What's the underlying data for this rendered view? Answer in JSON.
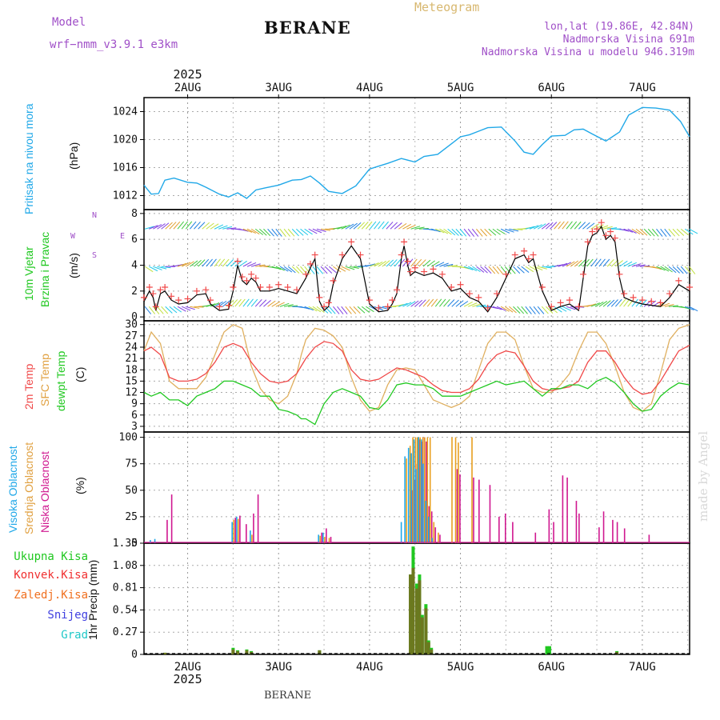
{
  "header": {
    "model_label": "Model",
    "model_name": "wrf−nmm_v3.9.1 e3km",
    "title": "BERANE",
    "meteogram": "Meteogram",
    "lonlat": "lon,lat (19.86E, 42.84N)",
    "elevation": "Nadmorska Visina 691m",
    "model_elevation": "Nadmorska Visina u modelu 946.319m",
    "footer_station": "BERANE",
    "watermark": "made by Angel"
  },
  "chart_data": {
    "type": "meteogram",
    "year": "2025",
    "x_range_days": [
      1.52,
      7.52
    ],
    "day_ticks": [
      {
        "day": 2,
        "label": "2AUG"
      },
      {
        "day": 3,
        "label": "3AUG"
      },
      {
        "day": 4,
        "label": "4AUG"
      },
      {
        "day": 5,
        "label": "5AUG"
      },
      {
        "day": 6,
        "label": "6AUG"
      },
      {
        "day": 7,
        "label": "7AUG"
      }
    ],
    "panels": {
      "pressure": {
        "ylabel": "Pritisak na nivou mora",
        "unit": "(hPa)",
        "ylim": [
          1010,
          1026
        ],
        "yticks": [
          "1012",
          "1016",
          "1020",
          "1024"
        ],
        "color": "#20a8e8",
        "x": [
          1.52,
          1.6,
          1.68,
          1.75,
          1.85,
          2.0,
          2.1,
          2.2,
          2.35,
          2.45,
          2.55,
          2.65,
          2.75,
          2.85,
          3.0,
          3.15,
          3.25,
          3.35,
          3.45,
          3.55,
          3.7,
          3.85,
          4.0,
          4.1,
          4.2,
          4.35,
          4.5,
          4.6,
          4.75,
          4.9,
          5.0,
          5.1,
          5.2,
          5.3,
          5.45,
          5.6,
          5.7,
          5.8,
          5.9,
          6.0,
          6.15,
          6.25,
          6.35,
          6.45,
          6.6,
          6.75,
          6.85,
          7.0,
          7.15,
          7.3,
          7.42,
          7.52
        ],
        "values": [
          1013.5,
          1012.2,
          1012.3,
          1014.2,
          1014.5,
          1013.9,
          1013.8,
          1013.2,
          1012.2,
          1011.8,
          1012.4,
          1011.6,
          1012.8,
          1013.1,
          1013.5,
          1014.2,
          1014.3,
          1014.8,
          1013.8,
          1012.6,
          1012.3,
          1013.4,
          1015.8,
          1016.2,
          1016.6,
          1017.3,
          1016.8,
          1017.6,
          1017.9,
          1019.4,
          1020.4,
          1020.7,
          1021.2,
          1021.7,
          1021.8,
          1019.8,
          1018.2,
          1017.9,
          1019.3,
          1020.5,
          1020.6,
          1021.4,
          1021.5,
          1020.8,
          1019.8,
          1021.1,
          1023.5,
          1024.6,
          1024.5,
          1024.2,
          1022.6,
          1020.4
        ]
      },
      "wind": {
        "ylabel": "10m Vjetar",
        "ylabel2": "Brzina i Pravac",
        "unit": "(m/s)",
        "ylim": [
          -0.3,
          8.3
        ],
        "yticks": [
          "0",
          "2",
          "4",
          "6",
          "8"
        ],
        "compass": "N",
        "compass_s": "S",
        "compass_w": "W",
        "compass_e": "E",
        "speed_x": [
          1.52,
          1.58,
          1.62,
          1.65,
          1.7,
          1.75,
          1.82,
          1.9,
          2.0,
          2.1,
          2.2,
          2.25,
          2.35,
          2.45,
          2.5,
          2.55,
          2.6,
          2.65,
          2.7,
          2.75,
          2.8,
          2.9,
          3.0,
          3.1,
          3.2,
          3.3,
          3.35,
          3.4,
          3.45,
          3.5,
          3.55,
          3.6,
          3.7,
          3.8,
          3.9,
          4.0,
          4.1,
          4.2,
          4.25,
          4.3,
          4.35,
          4.38,
          4.42,
          4.45,
          4.5,
          4.6,
          4.7,
          4.8,
          4.9,
          5.0,
          5.1,
          5.2,
          5.3,
          5.4,
          5.5,
          5.6,
          5.7,
          5.75,
          5.8,
          5.9,
          6.0,
          6.1,
          6.2,
          6.3,
          6.35,
          6.4,
          6.45,
          6.5,
          6.55,
          6.6,
          6.65,
          6.7,
          6.75,
          6.8,
          6.9,
          7.0,
          7.1,
          7.2,
          7.3,
          7.4,
          7.52
        ],
        "speed_values": [
          1.2,
          2.0,
          1.5,
          0.5,
          1.8,
          2.0,
          1.3,
          1.0,
          1.1,
          1.7,
          1.8,
          1.0,
          0.5,
          0.6,
          2.0,
          4.0,
          2.8,
          2.5,
          3.0,
          2.7,
          2.0,
          2.0,
          2.2,
          2.0,
          1.8,
          3.0,
          3.8,
          4.5,
          1.2,
          0.5,
          0.8,
          2.5,
          4.5,
          5.5,
          4.5,
          1.0,
          0.4,
          0.5,
          1.0,
          1.8,
          4.5,
          5.5,
          4.0,
          3.2,
          3.5,
          3.2,
          3.4,
          3.0,
          2.0,
          2.2,
          1.5,
          1.2,
          0.4,
          1.5,
          3.0,
          4.5,
          4.8,
          4.2,
          4.5,
          2.0,
          0.5,
          0.8,
          1.0,
          0.5,
          3.0,
          5.5,
          6.3,
          6.5,
          7.0,
          6.0,
          6.3,
          5.8,
          3.0,
          1.5,
          1.2,
          1.0,
          0.9,
          0.8,
          1.5,
          2.5,
          2.0
        ],
        "barb_rows": [
          0.8,
          3.9,
          6.8
        ]
      },
      "temperature": {
        "ylabel": "2m Temp",
        "ylabel2": "SFC Temp",
        "ylabel3": "dewpt Temp",
        "unit": "(C)",
        "ylim": [
          1.5,
          31
        ],
        "yticks": [
          "3",
          "6",
          "9",
          "12",
          "15",
          "18",
          "21",
          "24",
          "27",
          "30"
        ],
        "x": [
          1.52,
          1.6,
          1.7,
          1.8,
          1.9,
          2.0,
          2.1,
          2.2,
          2.3,
          2.4,
          2.5,
          2.6,
          2.7,
          2.8,
          2.9,
          3.0,
          3.1,
          3.2,
          3.25,
          3.3,
          3.4,
          3.5,
          3.6,
          3.7,
          3.8,
          3.9,
          4.0,
          4.1,
          4.2,
          4.3,
          4.4,
          4.5,
          4.6,
          4.7,
          4.8,
          4.9,
          5.0,
          5.1,
          5.2,
          5.3,
          5.4,
          5.5,
          5.6,
          5.7,
          5.8,
          5.9,
          6.0,
          6.1,
          6.2,
          6.3,
          6.4,
          6.5,
          6.6,
          6.7,
          6.8,
          6.9,
          7.0,
          7.1,
          7.2,
          7.3,
          7.4,
          7.52
        ],
        "t2m": [
          23,
          24,
          22,
          16,
          15,
          15,
          15.5,
          17,
          20,
          24,
          25,
          24,
          20,
          17,
          15,
          14.5,
          15,
          17,
          19,
          21,
          24,
          25.5,
          25,
          23,
          18,
          15.5,
          15,
          15.5,
          17,
          18.5,
          18,
          17,
          16,
          14,
          12.5,
          12,
          12,
          13,
          15.5,
          19.5,
          22,
          23,
          22.5,
          19,
          15,
          13,
          12.5,
          13,
          13.5,
          15,
          20,
          23,
          23,
          20,
          16,
          13,
          11.5,
          12,
          15,
          19,
          23,
          24.5
        ],
        "sfc": [
          23,
          28,
          25,
          15,
          13,
          13,
          13,
          16,
          22,
          28,
          30,
          29,
          19,
          13,
          10,
          9,
          11,
          17,
          22,
          26,
          29,
          28.5,
          27,
          24,
          16,
          10,
          7,
          8,
          14,
          18,
          18.5,
          18,
          14,
          10,
          9,
          8,
          9,
          11,
          18,
          25,
          28,
          28,
          26,
          19,
          13,
          12,
          12,
          14,
          17,
          23,
          28,
          28,
          25,
          19,
          12,
          8,
          7,
          9,
          17,
          26,
          29,
          30
        ],
        "dew": [
          12,
          11,
          12,
          10,
          10,
          8.5,
          11,
          12,
          13,
          15,
          15,
          14,
          13,
          11,
          11,
          7.5,
          7,
          6,
          5,
          5,
          3.5,
          9,
          12,
          13,
          12,
          11,
          8,
          7.5,
          10,
          14,
          14.5,
          14,
          14,
          13,
          11,
          11,
          11,
          12,
          13,
          14,
          15,
          14,
          14.5,
          15,
          13,
          11,
          13,
          13,
          14,
          14,
          13,
          15,
          16,
          14.5,
          12,
          9,
          7,
          7.5,
          11,
          13,
          14.5,
          14
        ]
      },
      "cloud": {
        "ylabel": "Visoka Oblacnost",
        "ylabel2": "Srednja Oblacnost",
        "ylabel3": "Niska Oblacnost",
        "unit": "(%)",
        "ylim": [
          0,
          105
        ],
        "yticks": [
          "0",
          "25",
          "50",
          "75",
          "100"
        ],
        "high_color": "#20a8e8",
        "mid_color": "#e8a020",
        "low_color": "#d01890",
        "bars": [
          [
            1.6,
            3,
            0,
            0
          ],
          [
            1.65,
            4,
            0,
            0
          ],
          [
            1.75,
            0,
            0,
            22
          ],
          [
            1.8,
            0,
            0,
            46
          ],
          [
            2.5,
            20,
            22,
            24
          ],
          [
            2.55,
            25,
            23,
            26
          ],
          [
            2.62,
            0,
            0,
            18
          ],
          [
            2.7,
            12,
            8,
            28
          ],
          [
            2.75,
            0,
            0,
            46
          ],
          [
            3.45,
            8,
            7,
            10
          ],
          [
            3.5,
            10,
            6,
            14
          ],
          [
            3.55,
            0,
            5,
            6
          ],
          [
            4.36,
            20,
            0,
            0
          ],
          [
            4.4,
            82,
            80,
            0
          ],
          [
            4.44,
            90,
            92,
            50
          ],
          [
            4.47,
            85,
            100,
            60
          ],
          [
            4.5,
            98,
            100,
            75
          ],
          [
            4.52,
            70,
            100,
            98
          ],
          [
            4.55,
            100,
            100,
            96
          ],
          [
            4.58,
            98,
            100,
            100
          ],
          [
            4.6,
            75,
            100,
            96
          ],
          [
            4.63,
            40,
            100,
            35
          ],
          [
            4.66,
            25,
            100,
            30
          ],
          [
            4.7,
            5,
            20,
            15
          ],
          [
            4.75,
            0,
            10,
            8
          ],
          [
            4.9,
            0,
            100,
            0
          ],
          [
            4.94,
            0,
            100,
            70
          ],
          [
            4.97,
            0,
            95,
            65
          ],
          [
            5.12,
            0,
            100,
            62
          ],
          [
            5.18,
            0,
            0,
            60
          ],
          [
            5.3,
            0,
            0,
            55
          ],
          [
            5.4,
            0,
            0,
            25
          ],
          [
            5.47,
            0,
            0,
            28
          ],
          [
            5.55,
            0,
            0,
            20
          ],
          [
            5.8,
            0,
            0,
            10
          ],
          [
            5.95,
            0,
            0,
            32
          ],
          [
            6.0,
            0,
            0,
            20
          ],
          [
            6.1,
            0,
            0,
            64
          ],
          [
            6.15,
            0,
            0,
            62
          ],
          [
            6.25,
            0,
            0,
            40
          ],
          [
            6.28,
            0,
            0,
            28
          ],
          [
            6.5,
            0,
            0,
            15
          ],
          [
            6.55,
            0,
            0,
            30
          ],
          [
            6.65,
            0,
            0,
            22
          ],
          [
            6.7,
            0,
            0,
            20
          ],
          [
            6.78,
            0,
            0,
            14
          ],
          [
            7.05,
            0,
            0,
            8
          ]
        ]
      },
      "precip": {
        "ylabel": "1hr Precip (mm)",
        "ylim": [
          0,
          1.35
        ],
        "yticks": [
          "0",
          "0.27",
          "0.54",
          "0.81",
          "1.08",
          "1.35"
        ],
        "legend": [
          "Ukupna Kisa",
          "Konvek.Kisa",
          "Zaledj.Kisa",
          "Snijeg",
          "Grad"
        ],
        "legend_colors": [
          "#20c820",
          "#f03030",
          "#f07020",
          "#4040e0",
          "#20c8c8"
        ],
        "bars": [
          [
            2.5,
            0.08,
            0.06
          ],
          [
            2.55,
            0.05,
            0.04
          ],
          [
            2.65,
            0.06,
            0.05
          ],
          [
            2.7,
            0.04,
            0.03
          ],
          [
            3.45,
            0.05,
            0.05
          ],
          [
            1.75,
            0.02,
            0.02
          ],
          [
            4.45,
            0.97,
            0.97
          ],
          [
            4.48,
            1.31,
            1.05
          ],
          [
            4.52,
            0.86,
            0.8
          ],
          [
            4.55,
            0.97,
            0.9
          ],
          [
            4.58,
            0.48,
            0.45
          ],
          [
            4.62,
            0.61,
            0.56
          ],
          [
            4.65,
            0.17,
            0.15
          ],
          [
            4.68,
            0.08,
            0.06
          ],
          [
            5.95,
            0.1,
            0.0
          ],
          [
            5.98,
            0.1,
            0.0
          ],
          [
            6.72,
            0.04,
            0.03
          ]
        ]
      }
    }
  }
}
